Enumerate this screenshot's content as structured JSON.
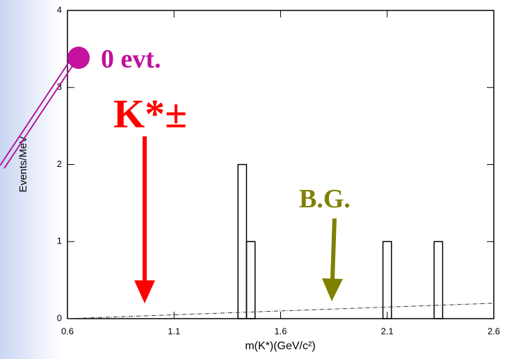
{
  "chart_data": {
    "type": "histogram",
    "x_label": "m(K*)(GeV/c²)",
    "y_label": "Events/MeV",
    "bins": [
      0.6,
      0.64,
      0.68,
      0.72,
      0.76,
      0.8,
      0.84,
      0.88,
      0.92,
      0.96,
      1.0,
      1.04,
      1.08,
      1.12,
      1.16,
      1.2,
      1.24,
      1.28,
      1.32,
      1.36,
      1.4,
      1.44,
      1.48,
      1.52,
      1.56,
      1.6,
      1.64,
      1.68,
      1.72,
      1.76,
      1.8,
      1.84,
      1.88,
      1.92,
      1.96,
      2.0,
      2.04,
      2.08,
      2.12,
      2.16,
      2.2,
      2.24,
      2.28,
      2.32,
      2.36,
      2.4,
      2.44,
      2.48,
      2.52,
      2.56,
      2.6
    ],
    "counts": [
      0,
      0,
      0,
      0,
      0,
      0,
      0,
      0,
      0,
      0,
      0,
      0,
      0,
      0,
      0,
      0,
      0,
      0,
      0,
      0,
      2,
      1,
      0,
      0,
      0,
      0,
      0,
      0,
      0,
      0,
      0,
      0,
      0,
      0,
      0,
      0,
      0,
      1,
      0,
      0,
      0,
      0,
      0,
      1,
      0,
      0,
      0,
      0,
      0,
      0
    ],
    "color": "#000000",
    "fit_line": {
      "x": [
        0.6,
        2.6
      ],
      "y": [
        0,
        0.2
      ],
      "color": "#333333"
    },
    "xlim": [
      0.6,
      2.6
    ],
    "xticks": [
      0.6,
      1.1,
      1.6,
      2.1,
      2.6
    ],
    "ylim": [
      0,
      4
    ],
    "yticks": [
      0,
      1,
      2,
      3,
      4
    ],
    "annotations": {
      "zero_events": "0 evt.",
      "signal": "K*±",
      "background": "B.G."
    }
  }
}
